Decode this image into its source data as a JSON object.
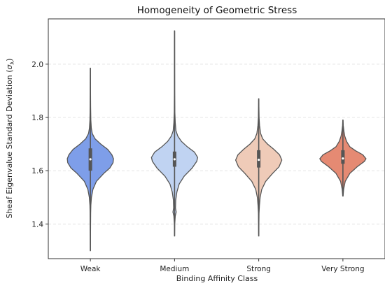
{
  "chart_data": {
    "type": "violin",
    "title": "Homogeneity of Geometric Stress",
    "xlabel": "Binding Affinity Class",
    "ylabel": "Sheaf Eigenvalue Standard Deviation (σλ)",
    "ylabel_main": "Sheaf Eigenvalue Standard Deviation (",
    "ylabel_sigma": "σ",
    "ylabel_sub": "λ",
    "ylabel_close": ")",
    "categories": [
      "Weak",
      "Medium",
      "Strong",
      "Very Strong"
    ],
    "ylim": [
      1.27,
      2.17
    ],
    "yticks": [
      1.4,
      1.6,
      1.8,
      2.0
    ],
    "ytick_labels": [
      "1.4",
      "1.6",
      "1.8",
      "2.0"
    ],
    "grid": true,
    "series": [
      {
        "category": "Weak",
        "color": "#7e9ee9",
        "min": 1.3,
        "max": 1.985,
        "q1": 1.6,
        "median": 1.643,
        "q3": 1.684,
        "density": [
          [
            1.3,
            0.003
          ],
          [
            1.36,
            0.006
          ],
          [
            1.4,
            0.009
          ],
          [
            1.44,
            0.012
          ],
          [
            1.47,
            0.02
          ],
          [
            1.5,
            0.045
          ],
          [
            1.53,
            0.11
          ],
          [
            1.56,
            0.26
          ],
          [
            1.59,
            0.58
          ],
          [
            1.61,
            0.84
          ],
          [
            1.63,
            0.98
          ],
          [
            1.645,
            1.0
          ],
          [
            1.66,
            0.93
          ],
          [
            1.68,
            0.75
          ],
          [
            1.7,
            0.45
          ],
          [
            1.72,
            0.2
          ],
          [
            1.74,
            0.08
          ],
          [
            1.76,
            0.04
          ],
          [
            1.79,
            0.02
          ],
          [
            1.84,
            0.01
          ],
          [
            1.9,
            0.006
          ],
          [
            1.985,
            0.003
          ]
        ]
      },
      {
        "category": "Medium",
        "color": "#c0d3f2",
        "min": 1.355,
        "max": 2.125,
        "q1": 1.615,
        "median": 1.643,
        "q3": 1.672,
        "density": [
          [
            1.355,
            0.003
          ],
          [
            1.4,
            0.008
          ],
          [
            1.43,
            0.03
          ],
          [
            1.445,
            0.07
          ],
          [
            1.46,
            0.04
          ],
          [
            1.49,
            0.05
          ],
          [
            1.52,
            0.1
          ],
          [
            1.55,
            0.2
          ],
          [
            1.58,
            0.42
          ],
          [
            1.61,
            0.76
          ],
          [
            1.635,
            0.96
          ],
          [
            1.65,
            1.0
          ],
          [
            1.67,
            0.86
          ],
          [
            1.69,
            0.55
          ],
          [
            1.71,
            0.3
          ],
          [
            1.73,
            0.14
          ],
          [
            1.75,
            0.06
          ],
          [
            1.78,
            0.03
          ],
          [
            1.82,
            0.012
          ],
          [
            1.9,
            0.006
          ],
          [
            2.0,
            0.004
          ],
          [
            2.125,
            0.003
          ]
        ]
      },
      {
        "category": "Strong",
        "color": "#efcbb8",
        "min": 1.355,
        "max": 1.87,
        "q1": 1.612,
        "median": 1.641,
        "q3": 1.677,
        "density": [
          [
            1.355,
            0.003
          ],
          [
            1.4,
            0.007
          ],
          [
            1.44,
            0.012
          ],
          [
            1.47,
            0.03
          ],
          [
            1.5,
            0.06
          ],
          [
            1.53,
            0.13
          ],
          [
            1.56,
            0.3
          ],
          [
            1.59,
            0.6
          ],
          [
            1.615,
            0.88
          ],
          [
            1.64,
            1.0
          ],
          [
            1.66,
            0.9
          ],
          [
            1.68,
            0.66
          ],
          [
            1.7,
            0.38
          ],
          [
            1.72,
            0.17
          ],
          [
            1.74,
            0.08
          ],
          [
            1.77,
            0.035
          ],
          [
            1.8,
            0.015
          ],
          [
            1.84,
            0.007
          ],
          [
            1.87,
            0.003
          ]
        ]
      },
      {
        "category": "Very Strong",
        "color": "#e58a73",
        "min": 1.505,
        "max": 1.79,
        "q1": 1.626,
        "median": 1.646,
        "q3": 1.677,
        "density": [
          [
            1.505,
            0.008
          ],
          [
            1.53,
            0.03
          ],
          [
            1.56,
            0.1
          ],
          [
            1.59,
            0.3
          ],
          [
            1.615,
            0.62
          ],
          [
            1.635,
            0.93
          ],
          [
            1.645,
            1.0
          ],
          [
            1.66,
            0.86
          ],
          [
            1.675,
            0.55
          ],
          [
            1.69,
            0.3
          ],
          [
            1.71,
            0.16
          ],
          [
            1.73,
            0.08
          ],
          [
            1.75,
            0.04
          ],
          [
            1.77,
            0.015
          ],
          [
            1.79,
            0.005
          ]
        ]
      }
    ]
  }
}
